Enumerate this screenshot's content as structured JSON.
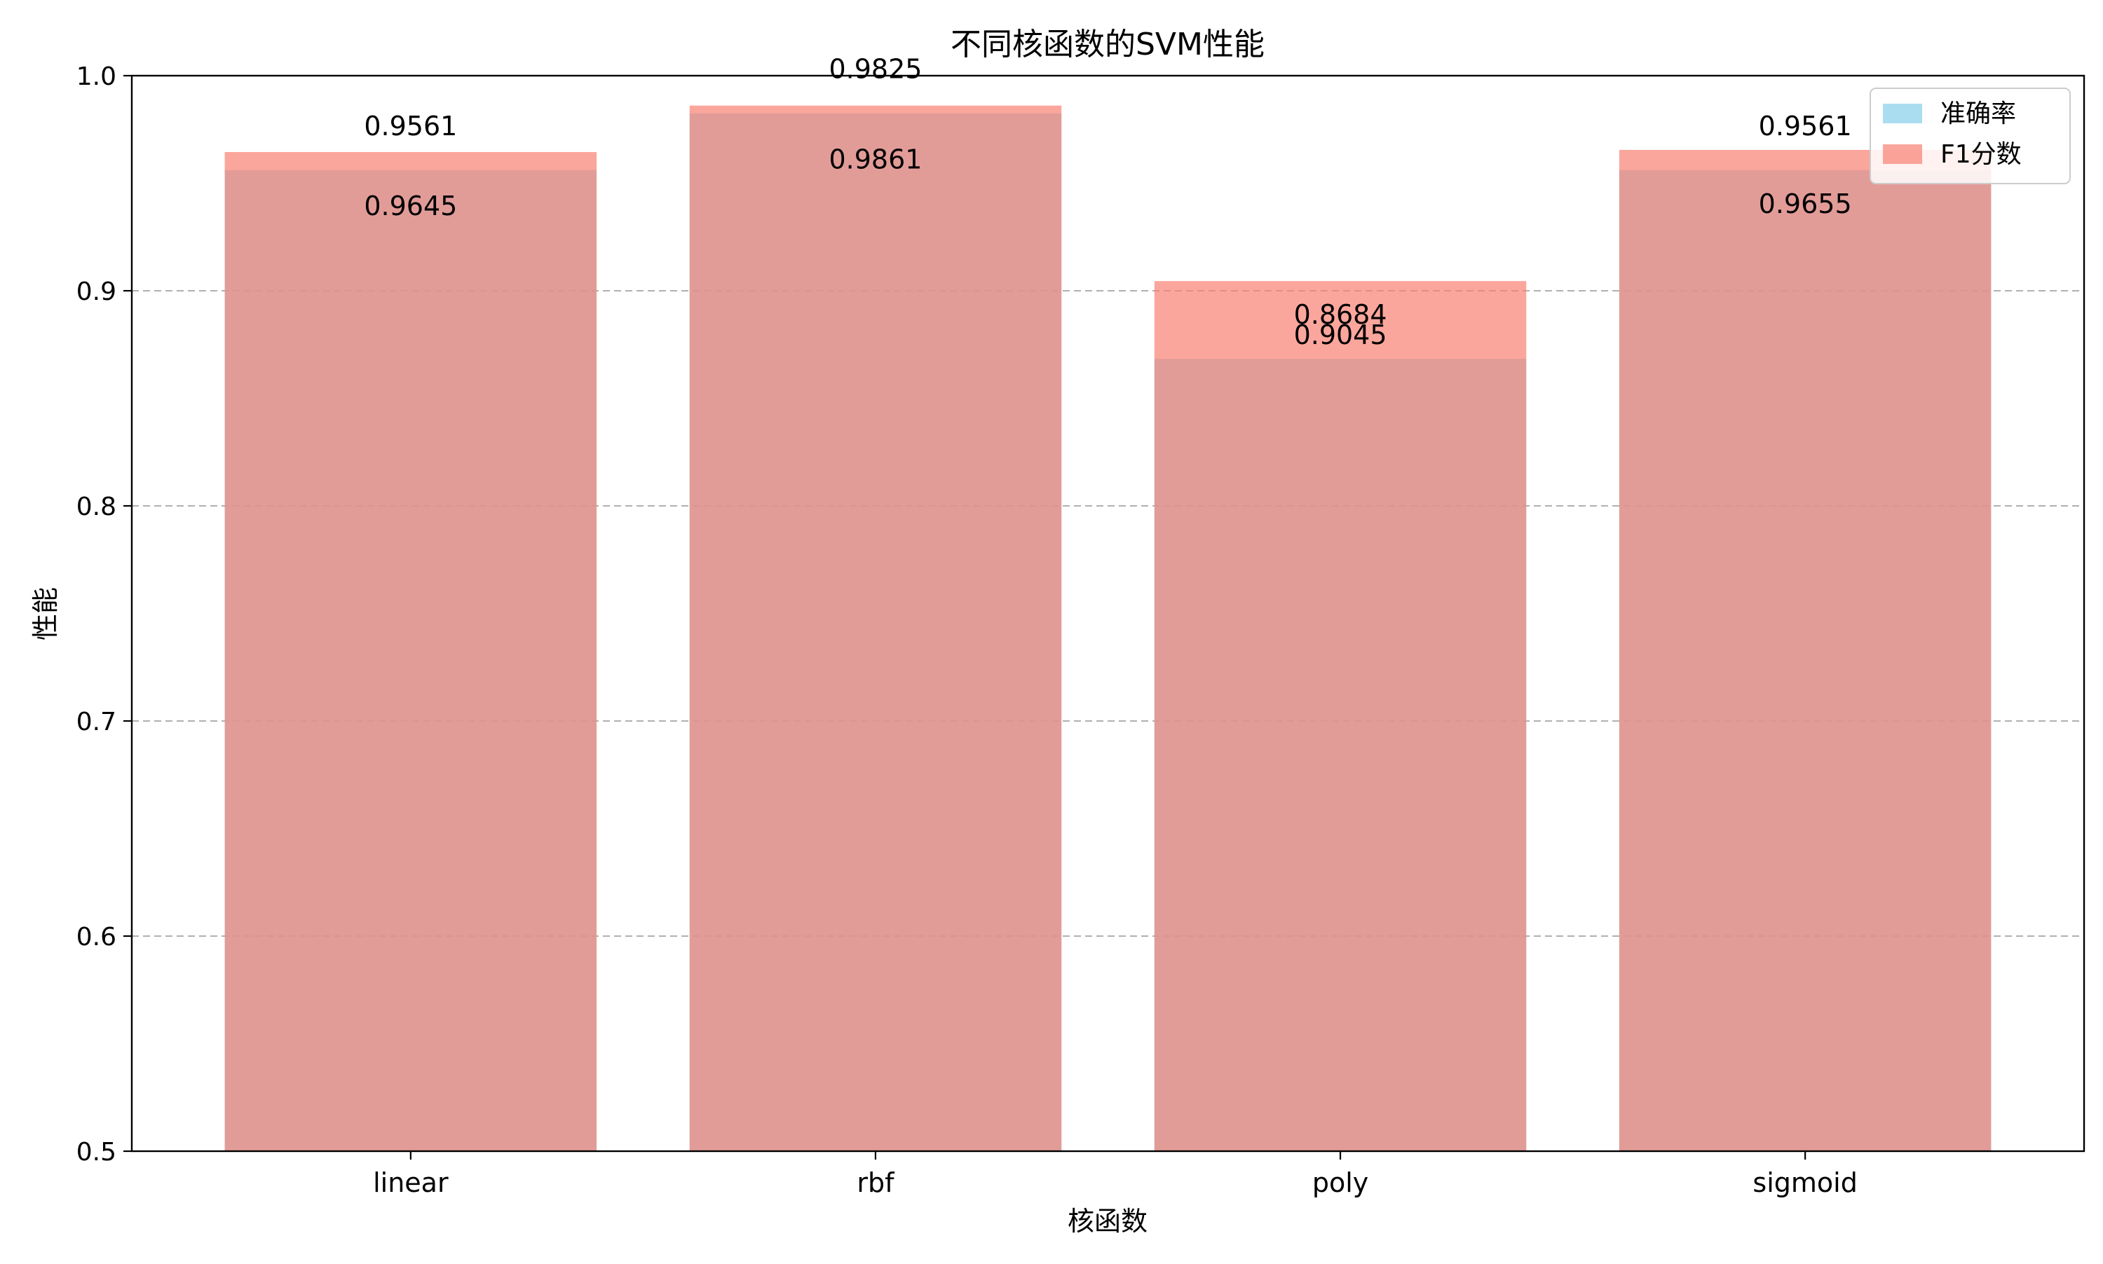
{
  "chart_data": {
    "type": "bar",
    "title": "不同核函数的SVM性能",
    "xlabel": "核函数",
    "ylabel": "性能",
    "categories": [
      "linear",
      "rbf",
      "poly",
      "sigmoid"
    ],
    "ylim": [
      0.5,
      1.0
    ],
    "yticks": [
      "0.5",
      "0.6",
      "0.7",
      "0.8",
      "0.9",
      "1.0"
    ],
    "grid": "y-dashed",
    "legend_position": "top-right",
    "series": [
      {
        "name": "准确率",
        "values": [
          0.9561,
          0.9825,
          0.8684,
          0.9561
        ],
        "labels": [
          "0.9561",
          "0.9825",
          "0.8684",
          "0.9561"
        ],
        "color": "#87ceeb"
      },
      {
        "name": "F1分数",
        "values": [
          0.9645,
          0.9861,
          0.9045,
          0.9655
        ],
        "labels": [
          "0.9645",
          "0.9861",
          "0.9045",
          "0.9655"
        ],
        "color": "#fa8072"
      }
    ]
  }
}
